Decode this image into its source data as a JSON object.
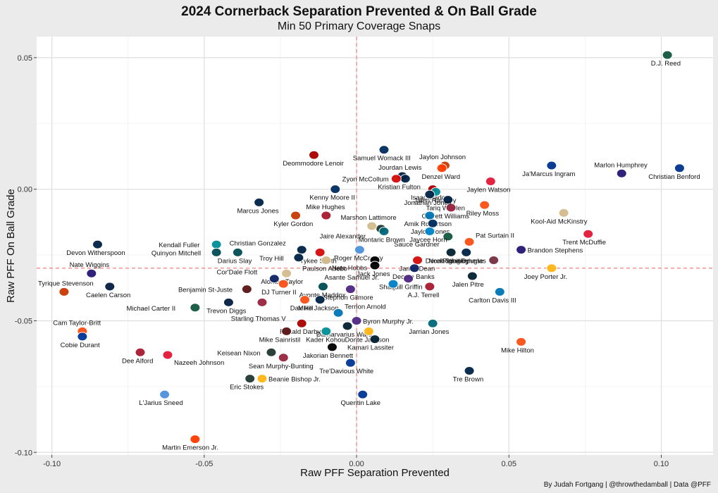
{
  "chart_data": {
    "type": "scatter",
    "title": "2024 Cornerback Separation Prevented & On Ball Grade",
    "subtitle": "Min 50 Primary Coverage Snaps",
    "xlabel": "Raw PFF Separation Prevented",
    "ylabel": "Raw PFF On Ball Grade",
    "caption": "By Judah Fortgang | @throwthedamball | Data @PFF",
    "xlim": [
      -0.105,
      0.117
    ],
    "ylim": [
      -0.101,
      0.058
    ],
    "x_ticks": [
      -0.1,
      -0.05,
      0.0,
      0.05,
      0.1
    ],
    "x_tick_labels": [
      "-0.10",
      "-0.05",
      "0.00",
      "0.05",
      "0.10"
    ],
    "y_ticks": [
      -0.1,
      -0.05,
      0.0,
      0.05
    ],
    "y_tick_labels": [
      "-0.10",
      "-0.05",
      "0.00",
      "0.05"
    ],
    "ref_x": 0.0,
    "ref_y": -0.03,
    "grid": true,
    "points": [
      {
        "name": "D.J. Reed",
        "x": 0.102,
        "y": 0.051,
        "color": "#125740"
      },
      {
        "name": "Christian Benford",
        "x": 0.106,
        "y": 0.008,
        "color": "#00338D"
      },
      {
        "name": "Marlon Humphrey",
        "x": 0.087,
        "y": 0.006,
        "color": "#241773"
      },
      {
        "name": "Ja'Marcus Ingram",
        "x": 0.064,
        "y": 0.009,
        "color": "#00338D"
      },
      {
        "name": "Jaylen Watson",
        "x": 0.044,
        "y": 0.003,
        "color": "#E31837"
      },
      {
        "name": "Riley Moss",
        "x": 0.042,
        "y": -0.006,
        "color": "#FB4F14"
      },
      {
        "name": "Kool-Aid McKinstry",
        "x": 0.068,
        "y": -0.009,
        "color": "#D3BC8D"
      },
      {
        "name": "Trent McDuffie",
        "x": 0.076,
        "y": -0.017,
        "color": "#E31837"
      },
      {
        "name": "Pat Surtain II",
        "x": 0.037,
        "y": -0.02,
        "color": "#FB4F14"
      },
      {
        "name": "Brandon Stephens",
        "x": 0.054,
        "y": -0.023,
        "color": "#241773"
      },
      {
        "name": "Joey Porter Jr.",
        "x": 0.064,
        "y": -0.03,
        "color": "#FFB612"
      },
      {
        "name": "Noah Igbinoghene",
        "x": 0.045,
        "y": -0.027,
        "color": "#773141"
      },
      {
        "name": "Rasul Douglas",
        "x": 0.036,
        "y": -0.024,
        "color": "#002244"
      },
      {
        "name": "Jalen Pitre",
        "x": 0.038,
        "y": -0.033,
        "color": "#03202F"
      },
      {
        "name": "Carlton Davis III",
        "x": 0.047,
        "y": -0.039,
        "color": "#0076B6"
      },
      {
        "name": "Mike Hilton",
        "x": 0.054,
        "y": -0.058,
        "color": "#FB4F14"
      },
      {
        "name": "Tre Brown",
        "x": 0.037,
        "y": -0.069,
        "color": "#002244"
      },
      {
        "name": "Jarrian Jones",
        "x": 0.025,
        "y": -0.051,
        "color": "#006778"
      },
      {
        "name": "Jaylon Johnson",
        "x": 0.029,
        "y": 0.009,
        "color": "#C83803"
      },
      {
        "name": "Denzel Ward",
        "x": 0.028,
        "y": 0.008,
        "color": "#FF3C00"
      },
      {
        "name": "Isaac Yiadom",
        "x": 0.025,
        "y": 0.0,
        "color": "#AA0000"
      },
      {
        "name": "Jalen Ramsey",
        "x": 0.026,
        "y": -0.001,
        "color": "#008E97"
      },
      {
        "name": "Tariq Woolen",
        "x": 0.03,
        "y": -0.004,
        "color": "#002244"
      },
      {
        "name": "Garrett Williams",
        "x": 0.031,
        "y": -0.007,
        "color": "#97233F"
      },
      {
        "name": "Amik Robertson",
        "x": 0.024,
        "y": -0.01,
        "color": "#0076B6"
      },
      {
        "name": "Jaylon Jones",
        "x": 0.025,
        "y": -0.013,
        "color": "#002C5F"
      },
      {
        "name": "Sauce Gardner",
        "x": 0.03,
        "y": -0.018,
        "color": "#125740"
      },
      {
        "name": "Jaycee Horn",
        "x": 0.024,
        "y": -0.016,
        "color": "#0085CA"
      },
      {
        "name": "Derek Stingley",
        "x": 0.031,
        "y": -0.024,
        "color": "#03202F"
      },
      {
        "name": "Jamel Dean",
        "x": 0.02,
        "y": -0.027,
        "color": "#D50A0A"
      },
      {
        "name": "Deonte Banks",
        "x": 0.019,
        "y": -0.03,
        "color": "#0B2265"
      },
      {
        "name": "A.J. Terrell",
        "x": 0.024,
        "y": -0.037,
        "color": "#A71930"
      },
      {
        "name": "Shaquill Griffin",
        "x": 0.017,
        "y": -0.034,
        "color": "#4F2683"
      },
      {
        "name": "Asante Samuel Jr.",
        "x": 0.012,
        "y": -0.036,
        "color": "#0080C6"
      },
      {
        "name": "Samuel Womack III",
        "x": 0.009,
        "y": 0.015,
        "color": "#002C5F"
      },
      {
        "name": "Jourdan Lewis",
        "x": 0.015,
        "y": 0.005,
        "color": "#041E42"
      },
      {
        "name": "Kristian Fulton",
        "x": 0.016,
        "y": 0.004,
        "color": "#002244"
      },
      {
        "name": "Zyon McCollum",
        "x": 0.013,
        "y": 0.004,
        "color": "#D50A0A"
      },
      {
        "name": "Jonathan Jones",
        "x": 0.024,
        "y": -0.002,
        "color": "#002244"
      },
      {
        "name": "Kenny Moore II",
        "x": -0.007,
        "y": 0.0,
        "color": "#002C5F"
      },
      {
        "name": "Deommodore Lenoir",
        "x": -0.014,
        "y": 0.013,
        "color": "#AA0000"
      },
      {
        "name": "Marcus Jones",
        "x": -0.032,
        "y": -0.005,
        "color": "#002244"
      },
      {
        "name": "Kyler Gordon",
        "x": -0.02,
        "y": -0.01,
        "color": "#C83803"
      },
      {
        "name": "Mike Hughes",
        "x": -0.01,
        "y": -0.01,
        "color": "#A71930"
      },
      {
        "name": "Jaire Alexander",
        "x": 0.008,
        "y": -0.015,
        "color": "#203731"
      },
      {
        "name": "Marshon Lattimore",
        "x": 0.005,
        "y": -0.014,
        "color": "#D3BC8D"
      },
      {
        "name": "Montaric Brown",
        "x": 0.009,
        "y": -0.016,
        "color": "#006778"
      },
      {
        "name": "Roger McCreary",
        "x": 0.001,
        "y": -0.023,
        "color": "#4B92DB"
      },
      {
        "name": "Nate Hobbs",
        "x": 0.006,
        "y": -0.027,
        "color": "#000000"
      },
      {
        "name": "Jack Jones",
        "x": 0.006,
        "y": -0.029,
        "color": "#000000"
      },
      {
        "name": "Christian Gonzalez",
        "x": -0.018,
        "y": -0.023,
        "color": "#002244"
      },
      {
        "name": "Tykee Smith",
        "x": -0.012,
        "y": -0.024,
        "color": "#D50A0A"
      },
      {
        "name": "Paulson Adebo",
        "x": -0.01,
        "y": -0.027,
        "color": "#D3BC8D"
      },
      {
        "name": "Kendall Fuller",
        "x": -0.046,
        "y": -0.021,
        "color": "#008E97"
      },
      {
        "name": "Darius Slay",
        "x": -0.039,
        "y": -0.024,
        "color": "#004C54"
      },
      {
        "name": "Quinyon Mitchell",
        "x": -0.046,
        "y": -0.024,
        "color": "#004C54"
      },
      {
        "name": "Troy Hill",
        "x": -0.019,
        "y": -0.026,
        "color": "#002244"
      },
      {
        "name": "Alontae Taylor",
        "x": -0.023,
        "y": -0.032,
        "color": "#D3BC8D"
      },
      {
        "name": "Cor'Dale Flott",
        "x": -0.027,
        "y": -0.034,
        "color": "#0B2265"
      },
      {
        "name": "DJ Turner II",
        "x": -0.024,
        "y": -0.036,
        "color": "#FB4F14"
      },
      {
        "name": "Avonte Maddox",
        "x": -0.011,
        "y": -0.037,
        "color": "#004C54"
      },
      {
        "name": "Benjamin St-Juste",
        "x": -0.036,
        "y": -0.038,
        "color": "#5A1414"
      },
      {
        "name": "Stephon Gilmore",
        "x": -0.002,
        "y": -0.038,
        "color": "#4F2683"
      },
      {
        "name": "Dax Hill",
        "x": -0.017,
        "y": -0.042,
        "color": "#FB4F14"
      },
      {
        "name": "Mike Jackson",
        "x": -0.012,
        "y": -0.042,
        "color": "#002244"
      },
      {
        "name": "Starling Thomas V",
        "x": -0.031,
        "y": -0.043,
        "color": "#97233F"
      },
      {
        "name": "Terrion Arnold",
        "x": -0.006,
        "y": -0.047,
        "color": "#0076B6"
      },
      {
        "name": "Trevon Diggs",
        "x": -0.042,
        "y": -0.043,
        "color": "#041E42"
      },
      {
        "name": "Michael Carter II",
        "x": -0.053,
        "y": -0.045,
        "color": "#125740"
      },
      {
        "name": "Byron Murphy Jr.",
        "x": 0.0,
        "y": -0.05,
        "color": "#4F2683"
      },
      {
        "name": "Darnarvarius Ward",
        "x": -0.003,
        "y": -0.052,
        "color": "#03202F"
      },
      {
        "name": "Ronald Darby",
        "x": -0.018,
        "y": -0.051,
        "color": "#AA0000"
      },
      {
        "name": "Mike Sainristil",
        "x": -0.023,
        "y": -0.054,
        "color": "#5A1414"
      },
      {
        "name": "Kader Kohou",
        "x": -0.01,
        "y": -0.054,
        "color": "#008E97"
      },
      {
        "name": "Donte Jackson",
        "x": 0.004,
        "y": -0.054,
        "color": "#FFB612"
      },
      {
        "name": "Kamari Lassiter",
        "x": 0.006,
        "y": -0.057,
        "color": "#03202F"
      },
      {
        "name": "Jakorian Bennett",
        "x": -0.008,
        "y": -0.06,
        "color": "#000000"
      },
      {
        "name": "Keisean Nixon",
        "x": -0.028,
        "y": -0.062,
        "color": "#203731"
      },
      {
        "name": "Sean Murphy-Bunting",
        "x": -0.024,
        "y": -0.064,
        "color": "#97233F"
      },
      {
        "name": "Tre'Davious White",
        "x": -0.002,
        "y": -0.066,
        "color": "#003594"
      },
      {
        "name": "Eric Stokes",
        "x": -0.035,
        "y": -0.072,
        "color": "#203731"
      },
      {
        "name": "Beanie Bishop Jr.",
        "x": -0.031,
        "y": -0.072,
        "color": "#FFB612"
      },
      {
        "name": "Quentin Lake",
        "x": 0.002,
        "y": -0.078,
        "color": "#003594"
      },
      {
        "name": "Devon Witherspoon",
        "x": -0.085,
        "y": -0.021,
        "color": "#002244"
      },
      {
        "name": "Nate Wiggins",
        "x": -0.087,
        "y": -0.032,
        "color": "#241773"
      },
      {
        "name": "Caelen Carson",
        "x": -0.081,
        "y": -0.037,
        "color": "#041E42"
      },
      {
        "name": "Tyrique Stevenson",
        "x": -0.096,
        "y": -0.039,
        "color": "#C83803"
      },
      {
        "name": "Cam Taylor-Britt",
        "x": -0.09,
        "y": -0.054,
        "color": "#FB4F14"
      },
      {
        "name": "Cobie Durant",
        "x": -0.09,
        "y": -0.056,
        "color": "#003594"
      },
      {
        "name": "Dee Alford",
        "x": -0.071,
        "y": -0.062,
        "color": "#A71930"
      },
      {
        "name": "Nazeeh Johnson",
        "x": -0.062,
        "y": -0.063,
        "color": "#E31837"
      },
      {
        "name": "L'Jarius Sneed",
        "x": -0.063,
        "y": -0.078,
        "color": "#4B92DB"
      },
      {
        "name": "Martin Emerson Jr.",
        "x": -0.053,
        "y": -0.095,
        "color": "#FF3C00"
      }
    ]
  }
}
